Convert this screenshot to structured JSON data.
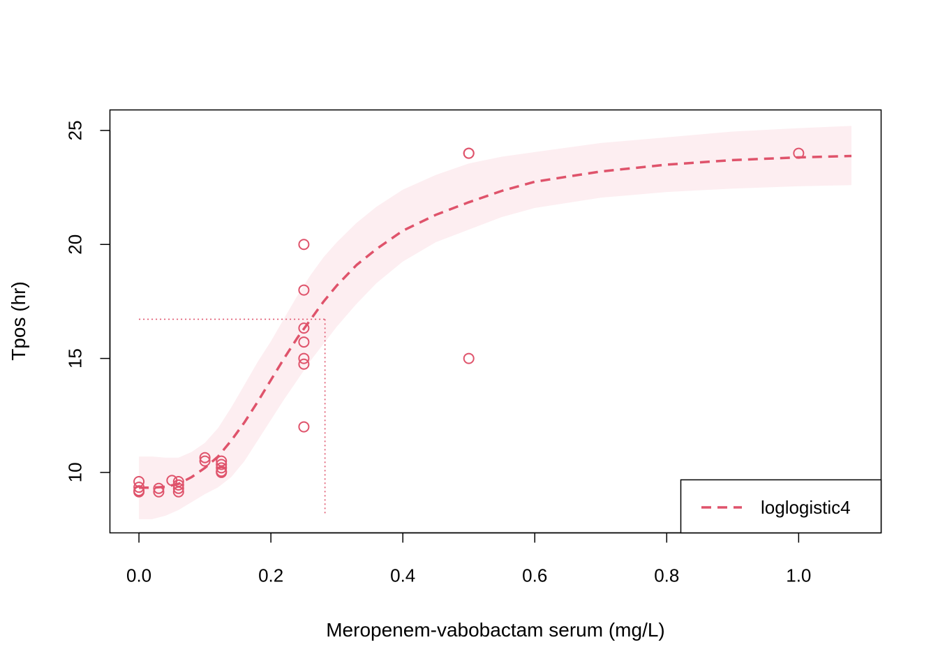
{
  "chart_data": {
    "type": "scatter",
    "title": "",
    "xlabel": "Meropenem-vabobactam serum (mg/L)",
    "ylabel": "Tpos (hr)",
    "xlim": [
      -0.044,
      1.125
    ],
    "ylim": [
      7.35,
      25.9
    ],
    "x_ticks": [
      0.0,
      0.2,
      0.4,
      0.6,
      0.8,
      1.0
    ],
    "x_tick_labels": [
      "0.0",
      "0.2",
      "0.4",
      "0.6",
      "0.8",
      "1.0"
    ],
    "y_ticks": [
      10,
      15,
      20,
      25
    ],
    "y_tick_labels": [
      "10",
      "15",
      "20",
      "25"
    ],
    "grid": false,
    "legend_position": "bottom-right",
    "series_color": "#DF536B",
    "band_color": "#FDEEF1",
    "points": {
      "x": [
        0,
        0,
        0,
        0,
        0.03,
        0.03,
        0.05,
        0.06,
        0.06,
        0.06,
        0.06,
        0.1,
        0.1,
        0.125,
        0.125,
        0.125,
        0.125,
        0.125,
        0.25,
        0.25,
        0.25,
        0.25,
        0.25,
        0.25,
        0.25,
        0.5,
        0.5,
        0.5,
        1.0
      ],
      "y": [
        9.6,
        9.35,
        9.2,
        9.15,
        9.3,
        9.15,
        9.65,
        9.6,
        9.45,
        9.3,
        9.15,
        10.65,
        10.5,
        10.5,
        10.35,
        10.2,
        10.05,
        10.0,
        20.0,
        18.0,
        16.33,
        15.72,
        15.0,
        14.75,
        12.0,
        24.0,
        24.0,
        15.0,
        24.0
      ]
    },
    "series": [
      {
        "name": "loglogistic4",
        "fit_x": [
          0.0,
          0.02,
          0.04,
          0.06,
          0.08,
          0.1,
          0.12,
          0.14,
          0.16,
          0.18,
          0.2,
          0.22,
          0.24,
          0.26,
          0.28,
          0.3,
          0.33,
          0.36,
          0.4,
          0.45,
          0.5,
          0.55,
          0.6,
          0.7,
          0.8,
          0.9,
          1.0,
          1.08
        ],
        "fit_y": [
          9.33,
          9.33,
          9.37,
          9.5,
          9.8,
          10.2,
          10.7,
          11.4,
          12.2,
          13.1,
          14.05,
          15.0,
          15.9,
          16.7,
          17.5,
          18.2,
          19.1,
          19.8,
          20.6,
          21.3,
          21.85,
          22.35,
          22.75,
          23.2,
          23.5,
          23.7,
          23.82,
          23.88
        ],
        "band_lower": [
          7.95,
          7.95,
          8.1,
          8.35,
          8.7,
          9.05,
          9.35,
          9.8,
          10.5,
          11.4,
          12.3,
          13.2,
          14.05,
          14.9,
          15.65,
          16.4,
          17.4,
          18.3,
          19.25,
          20.1,
          20.65,
          21.2,
          21.6,
          22.05,
          22.3,
          22.45,
          22.55,
          22.6
        ],
        "band_upper": [
          10.7,
          10.7,
          10.65,
          10.65,
          10.9,
          11.3,
          11.95,
          12.85,
          13.85,
          14.85,
          15.75,
          16.75,
          17.75,
          18.65,
          19.45,
          20.1,
          20.95,
          21.65,
          22.4,
          23.05,
          23.55,
          23.85,
          24.05,
          24.45,
          24.7,
          24.95,
          25.1,
          25.2
        ]
      }
    ],
    "ed50_guide": {
      "x": 0.282,
      "y": 16.72
    }
  }
}
